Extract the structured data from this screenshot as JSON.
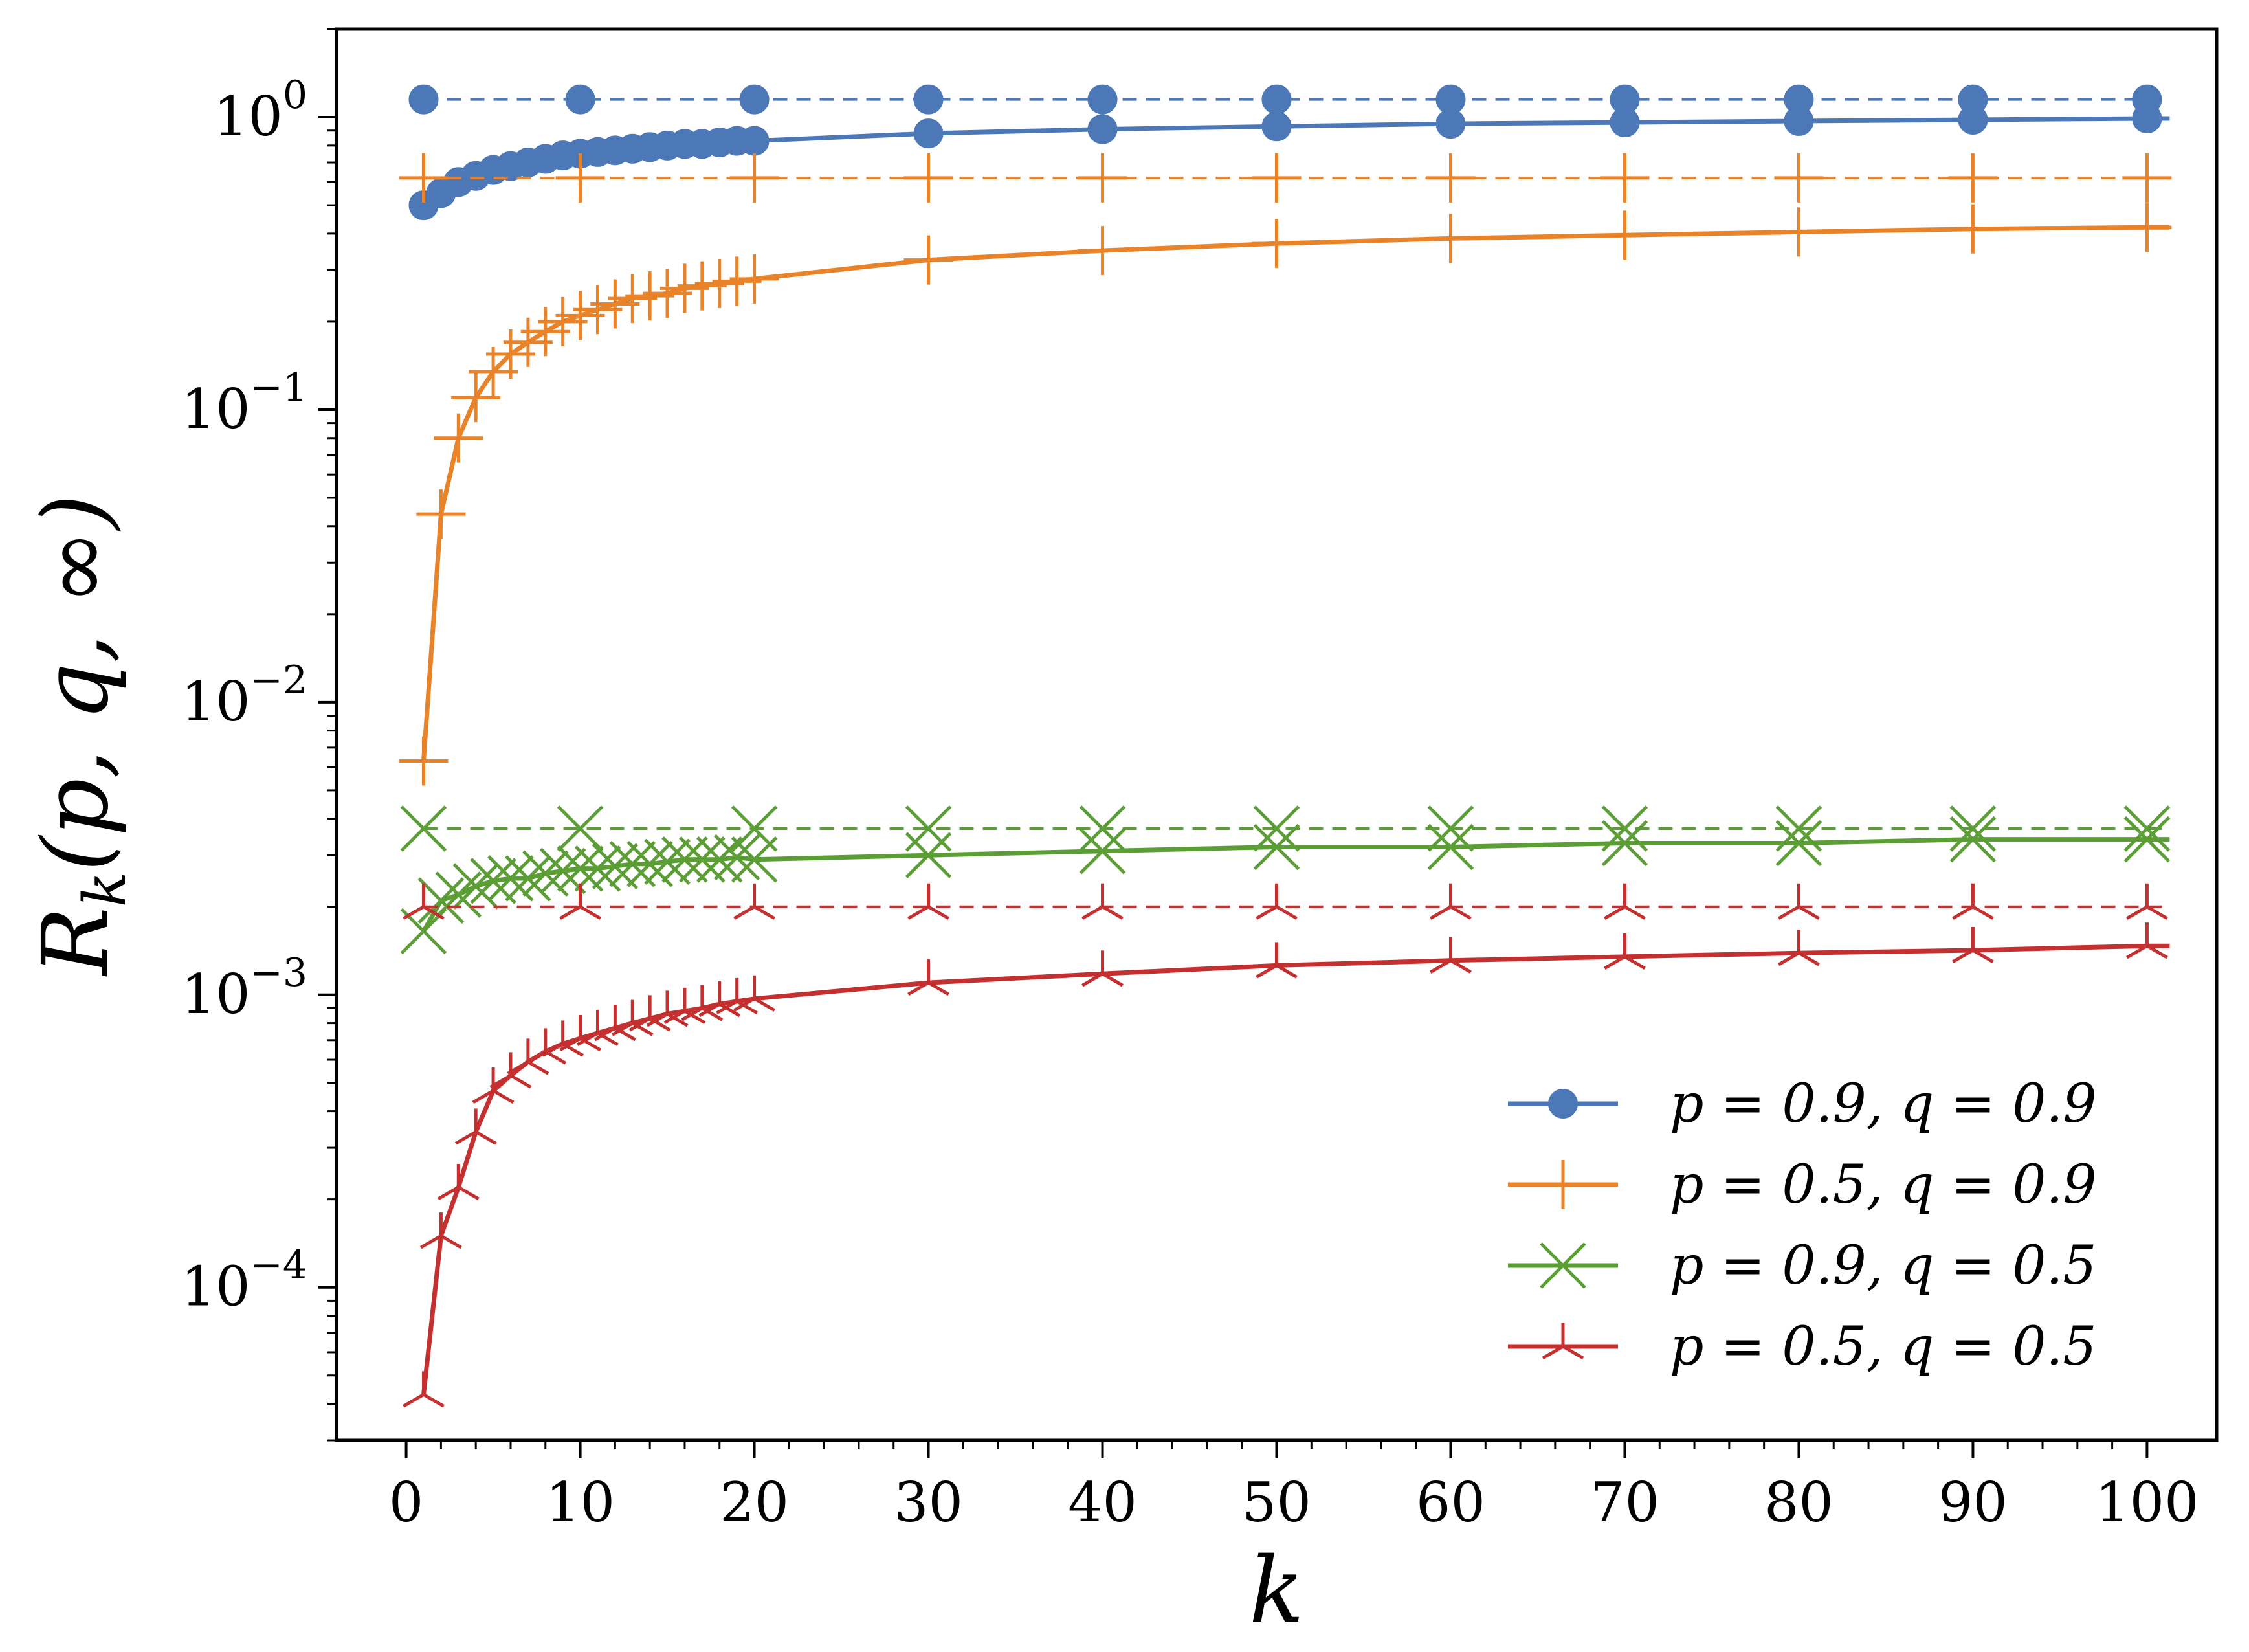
{
  "chart_data": {
    "type": "line",
    "title": "",
    "xlabel": "k",
    "ylabel": "R_k(p, q, ∞)",
    "ylabel_parts": {
      "base": "R",
      "sub": "k",
      "args": "(p, q, ∞)"
    },
    "x_scale": "linear",
    "y_scale": "log",
    "xlim": [
      -4,
      104
    ],
    "ylim": [
      3e-05,
      2.0
    ],
    "x_ticks": [
      0,
      10,
      20,
      30,
      40,
      50,
      60,
      70,
      80,
      90,
      100
    ],
    "x_tick_labels": [
      "0",
      "10",
      "20",
      "30",
      "40",
      "50",
      "60",
      "70",
      "80",
      "90",
      "100"
    ],
    "y_ticks": [
      0.0001,
      0.001,
      0.01,
      0.1,
      1
    ],
    "y_tick_labels": [
      {
        "base": "10",
        "exp": "−4"
      },
      {
        "base": "10",
        "exp": "−3"
      },
      {
        "base": "10",
        "exp": "−2"
      },
      {
        "base": "10",
        "exp": "−1"
      },
      {
        "base": "10",
        "exp": "0"
      }
    ],
    "grid": false,
    "legend_position": "lower-right",
    "x": [
      1,
      2,
      3,
      4,
      5,
      6,
      7,
      8,
      9,
      10,
      11,
      12,
      13,
      14,
      15,
      16,
      17,
      18,
      19,
      20,
      30,
      40,
      50,
      60,
      70,
      80,
      90,
      100
    ],
    "series": [
      {
        "name": "p = 0.9, q = 0.9",
        "label": {
          "p": "0.9",
          "q": "0.9"
        },
        "color": "#4c78b8",
        "marker": "circle",
        "values": [
          0.5,
          0.55,
          0.6,
          0.63,
          0.66,
          0.68,
          0.7,
          0.72,
          0.74,
          0.75,
          0.76,
          0.77,
          0.78,
          0.79,
          0.8,
          0.81,
          0.81,
          0.82,
          0.83,
          0.83,
          0.88,
          0.91,
          0.93,
          0.95,
          0.96,
          0.97,
          0.98,
          0.99
        ],
        "limit": 1.15
      },
      {
        "name": "p = 0.5, q = 0.9",
        "label": {
          "p": "0.5",
          "q": "0.9"
        },
        "color": "#e8832a",
        "marker": "plus",
        "values": [
          0.0063,
          0.044,
          0.08,
          0.11,
          0.135,
          0.155,
          0.17,
          0.185,
          0.2,
          0.21,
          0.22,
          0.23,
          0.24,
          0.245,
          0.25,
          0.26,
          0.265,
          0.27,
          0.275,
          0.28,
          0.325,
          0.35,
          0.37,
          0.385,
          0.395,
          0.405,
          0.415,
          0.42
        ],
        "limit": 0.62
      },
      {
        "name": "p = 0.9, q = 0.5",
        "label": {
          "p": "0.9",
          "q": "0.5"
        },
        "color": "#5b9e36",
        "marker": "x",
        "values": [
          0.00165,
          0.0021,
          0.0022,
          0.00235,
          0.00245,
          0.0025,
          0.0025,
          0.0026,
          0.00265,
          0.0027,
          0.0027,
          0.00275,
          0.0028,
          0.0028,
          0.00285,
          0.0029,
          0.0029,
          0.0029,
          0.00295,
          0.0029,
          0.003,
          0.0031,
          0.0032,
          0.0032,
          0.0033,
          0.0033,
          0.0034,
          0.0034
        ],
        "limit": 0.0037
      },
      {
        "name": "p = 0.5, q = 0.5",
        "label": {
          "p": "0.5",
          "q": "0.5"
        },
        "color": "#c42f2f",
        "marker": "tri",
        "values": [
          4.3e-05,
          0.00015,
          0.00022,
          0.00034,
          0.00047,
          0.00053,
          0.00059,
          0.00064,
          0.00068,
          0.00071,
          0.00074,
          0.00077,
          0.0008,
          0.00083,
          0.00086,
          0.00088,
          0.0009,
          0.00093,
          0.00095,
          0.00097,
          0.0011,
          0.00118,
          0.00126,
          0.00131,
          0.00135,
          0.00139,
          0.00142,
          0.00147
        ],
        "limit": 0.002
      }
    ]
  }
}
